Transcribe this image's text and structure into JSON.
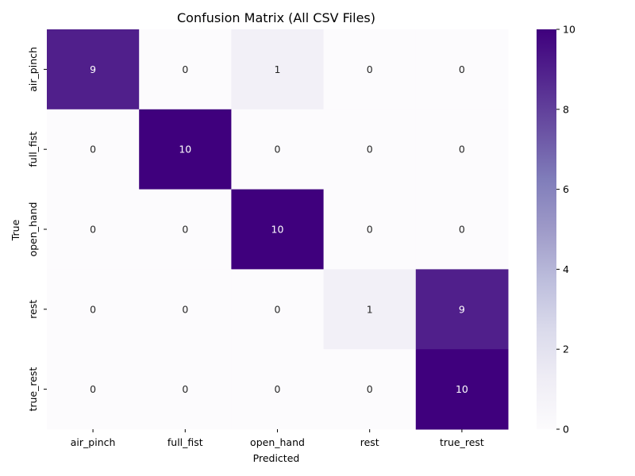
{
  "chart_data": {
    "type": "heatmap",
    "title": "Confusion Matrix (All CSV Files)",
    "xlabel": "Predicted",
    "ylabel": "True",
    "x_categories": [
      "air_pinch",
      "full_fist",
      "open_hand",
      "rest",
      "true_rest"
    ],
    "y_categories": [
      "air_pinch",
      "full_fist",
      "open_hand",
      "rest",
      "true_rest"
    ],
    "values": [
      [
        9,
        0,
        1,
        0,
        0
      ],
      [
        0,
        10,
        0,
        0,
        0
      ],
      [
        0,
        0,
        10,
        0,
        0
      ],
      [
        0,
        0,
        0,
        1,
        9
      ],
      [
        0,
        0,
        0,
        0,
        10
      ]
    ],
    "colorbar": {
      "range": [
        0,
        10
      ],
      "ticks": [
        0,
        2,
        4,
        6,
        8,
        10
      ]
    },
    "colormap": {
      "name": "Purples",
      "low_color": "#fcfbfd",
      "high_color": "#3f007d"
    },
    "grid": false
  }
}
